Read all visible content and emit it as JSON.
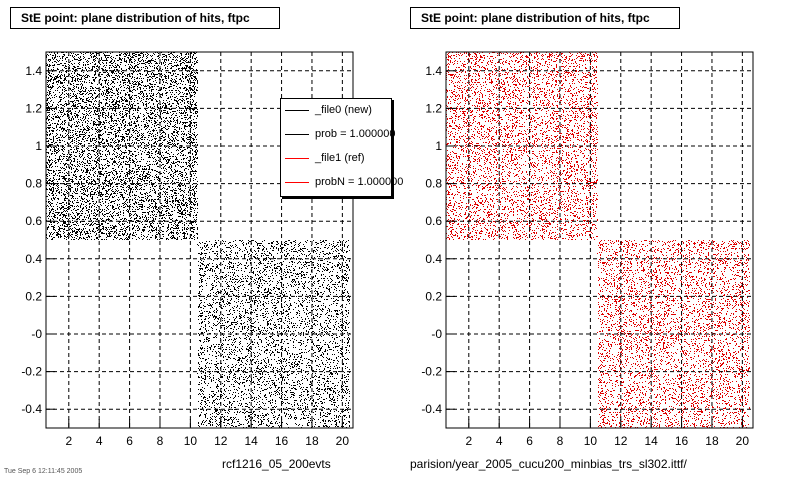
{
  "panels": [
    {
      "title": "StE point: plane distribution of hits, ftpc",
      "footer": "rcf1216_05_200evts",
      "color": "#000000",
      "legend": [
        {
          "label": "_file0 (new)",
          "color": "#000000"
        },
        {
          "label": "prob = 1.000000",
          "color": "#000000"
        },
        {
          "label": "_file1 (ref)",
          "color": "#ff0000"
        },
        {
          "label": "probN = 1.000000",
          "color": "#ff0000"
        }
      ]
    },
    {
      "title": "StE point: plane distribution of hits, ftpc",
      "footer": "parision/year_2005_cucu200_minbias_trs_sl302.ittf/",
      "color": "#e00000"
    }
  ],
  "footer_small": "Tue Sep 6 12:11:45 2005",
  "chart_data": [
    {
      "type": "scatter",
      "title": "StE point: plane distribution of hits, ftpc",
      "xlim": [
        0.5,
        20.7
      ],
      "ylim": [
        -0.5,
        1.5
      ],
      "x_ticks": [
        2,
        4,
        6,
        8,
        10,
        12,
        14,
        16,
        18,
        20
      ],
      "y_ticks": [
        -0.4,
        -0.2,
        0,
        0.2,
        0.4,
        0.6,
        0.8,
        1,
        1.2,
        1.4
      ],
      "y_tick_labels": [
        "-0.4",
        "-0.2",
        "-0",
        "0.2",
        "0.4",
        "0.6",
        "0.8",
        "1",
        "1.2",
        "1.4"
      ],
      "grid": true,
      "regions": [
        {
          "x": [
            0.5,
            10.5
          ],
          "y": [
            0.5,
            1.5
          ]
        },
        {
          "x": [
            10.5,
            20.5
          ],
          "y": [
            -0.5,
            0.5
          ]
        }
      ],
      "series": [
        {
          "name": "_file0 (new)",
          "color": "#000000"
        }
      ]
    },
    {
      "type": "scatter",
      "title": "StE point: plane distribution of hits, ftpc",
      "xlim": [
        0.5,
        20.7
      ],
      "ylim": [
        -0.5,
        1.5
      ],
      "x_ticks": [
        2,
        4,
        6,
        8,
        10,
        12,
        14,
        16,
        18,
        20
      ],
      "y_ticks": [
        -0.4,
        -0.2,
        0,
        0.2,
        0.4,
        0.6,
        0.8,
        1,
        1.2,
        1.4
      ],
      "y_tick_labels": [
        "-0.4",
        "-0.2",
        "-0",
        "0.2",
        "0.4",
        "0.6",
        "0.8",
        "1",
        "1.2",
        "1.4"
      ],
      "grid": true,
      "regions": [
        {
          "x": [
            0.5,
            10.5
          ],
          "y": [
            0.5,
            1.5
          ]
        },
        {
          "x": [
            10.5,
            20.5
          ],
          "y": [
            -0.5,
            0.5
          ]
        }
      ],
      "series": [
        {
          "name": "_file1 (ref)",
          "color": "#e00000"
        }
      ]
    }
  ]
}
